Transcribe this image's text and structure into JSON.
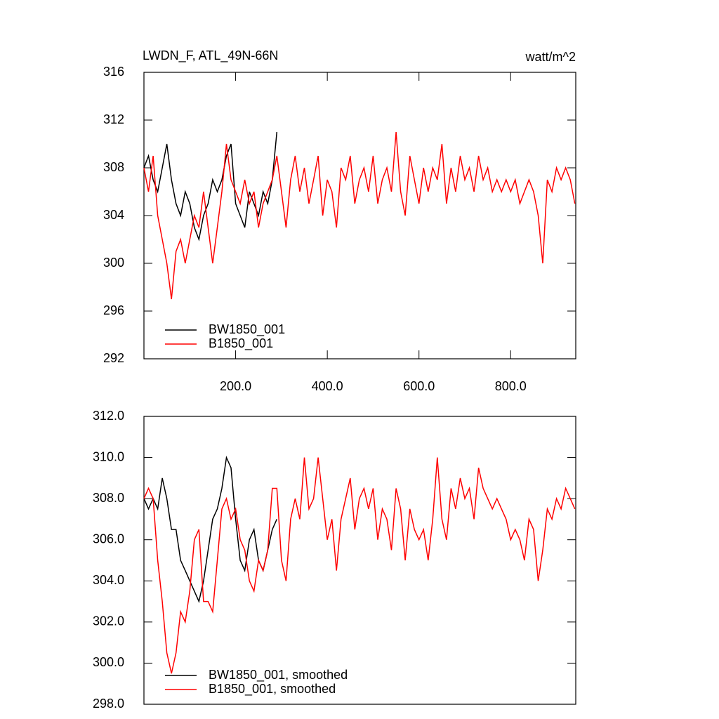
{
  "chart_data": [
    {
      "type": "line",
      "title": "LWDN_F, ATL_49N-66N",
      "units": "watt/m^2",
      "xlim": [
        0,
        942
      ],
      "xticks": [
        {
          "value": 200,
          "label": "200.0"
        },
        {
          "value": 400,
          "label": "400.0"
        },
        {
          "value": 600,
          "label": "600.0"
        },
        {
          "value": 800,
          "label": "800.0"
        }
      ],
      "ylim": [
        292,
        316
      ],
      "yticks": [
        292,
        296,
        300,
        304,
        308,
        312,
        316
      ],
      "series": [
        {
          "name": "BW1850_001",
          "color": "#000000",
          "x": [
            0,
            10,
            20,
            30,
            40,
            50,
            60,
            70,
            80,
            90,
            100,
            110,
            120,
            130,
            140,
            150,
            160,
            170,
            180,
            190,
            200,
            210,
            220,
            230,
            240,
            250,
            260,
            270,
            280,
            290
          ],
          "values": [
            308,
            309,
            307,
            306,
            308,
            310,
            307,
            305,
            304,
            306,
            305,
            303,
            302,
            304,
            305,
            307,
            306,
            307,
            309,
            310,
            305,
            304,
            303,
            306,
            305,
            304,
            306,
            305,
            307,
            311
          ]
        },
        {
          "name": "B1850_001",
          "color": "#ff0000",
          "x": [
            0,
            10,
            20,
            30,
            40,
            50,
            60,
            70,
            80,
            90,
            100,
            110,
            120,
            130,
            140,
            150,
            160,
            170,
            180,
            190,
            200,
            210,
            220,
            230,
            240,
            250,
            260,
            270,
            280,
            290,
            300,
            310,
            320,
            330,
            340,
            350,
            360,
            370,
            380,
            390,
            400,
            410,
            420,
            430,
            440,
            450,
            460,
            470,
            480,
            490,
            500,
            510,
            520,
            530,
            540,
            550,
            560,
            570,
            580,
            590,
            600,
            610,
            620,
            630,
            640,
            650,
            660,
            670,
            680,
            690,
            700,
            710,
            720,
            730,
            740,
            750,
            760,
            770,
            780,
            790,
            800,
            810,
            820,
            830,
            840,
            850,
            860,
            870,
            880,
            890,
            900,
            910,
            920,
            930,
            940
          ],
          "values": [
            308,
            306,
            309,
            304,
            302,
            300,
            297,
            301,
            302,
            300,
            302,
            304,
            303,
            306,
            303,
            300,
            303,
            306,
            310,
            307,
            306,
            305,
            307,
            305,
            306,
            303,
            305,
            306,
            307,
            309,
            306,
            303,
            307,
            309,
            306,
            308,
            305,
            307,
            309,
            304,
            307,
            306,
            303,
            308,
            307,
            309,
            305,
            307,
            308,
            306,
            309,
            305,
            307,
            308,
            306,
            311,
            306,
            304,
            309,
            307,
            305,
            308,
            306,
            308,
            307,
            310,
            305,
            308,
            306,
            309,
            307,
            308,
            306,
            309,
            307,
            308,
            306,
            307,
            306,
            307,
            306,
            307,
            305,
            306,
            307,
            306,
            304,
            300,
            307,
            306,
            308,
            307,
            308,
            307,
            305
          ]
        }
      ]
    },
    {
      "type": "line",
      "xlim": [
        0,
        942
      ],
      "ylim": [
        298,
        312
      ],
      "yticks": [
        {
          "value": 298,
          "label": "298.0"
        },
        {
          "value": 300,
          "label": "300.0"
        },
        {
          "value": 302,
          "label": "302.0"
        },
        {
          "value": 304,
          "label": "304.0"
        },
        {
          "value": 306,
          "label": "306.0"
        },
        {
          "value": 308,
          "label": "308.0"
        },
        {
          "value": 310,
          "label": "310.0"
        },
        {
          "value": 312,
          "label": "312.0"
        }
      ],
      "series": [
        {
          "name": "BW1850_001, smoothed",
          "color": "#000000",
          "x": [
            0,
            10,
            20,
            30,
            40,
            50,
            60,
            70,
            80,
            90,
            100,
            110,
            120,
            130,
            140,
            150,
            160,
            170,
            180,
            190,
            200,
            210,
            220,
            230,
            240,
            250,
            260,
            270,
            280,
            290
          ],
          "values": [
            308,
            307.5,
            308,
            307.5,
            309,
            308,
            306.5,
            306.5,
            305,
            304.5,
            304,
            303.5,
            303,
            304,
            305.5,
            307,
            307.5,
            308.5,
            310,
            309.5,
            307,
            305,
            304.5,
            306,
            306.5,
            305,
            304.5,
            305.5,
            306.5,
            307
          ]
        },
        {
          "name": "B1850_001, smoothed",
          "color": "#ff0000",
          "x": [
            0,
            10,
            20,
            30,
            40,
            50,
            60,
            70,
            80,
            90,
            100,
            110,
            120,
            130,
            140,
            150,
            160,
            170,
            180,
            190,
            200,
            210,
            220,
            230,
            240,
            250,
            260,
            270,
            280,
            290,
            300,
            310,
            320,
            330,
            340,
            350,
            360,
            370,
            380,
            390,
            400,
            410,
            420,
            430,
            440,
            450,
            460,
            470,
            480,
            490,
            500,
            510,
            520,
            530,
            540,
            550,
            560,
            570,
            580,
            590,
            600,
            610,
            620,
            630,
            640,
            650,
            660,
            670,
            680,
            690,
            700,
            710,
            720,
            730,
            740,
            750,
            760,
            770,
            780,
            790,
            800,
            810,
            820,
            830,
            840,
            850,
            860,
            870,
            880,
            890,
            900,
            910,
            920,
            930,
            940
          ],
          "values": [
            308,
            308.5,
            308,
            305,
            303,
            300.5,
            299.5,
            300.5,
            302.5,
            302,
            303.5,
            306,
            306.5,
            303,
            303,
            302.5,
            305,
            307.5,
            308,
            307,
            307.5,
            306,
            305.5,
            304,
            303.5,
            305,
            304.5,
            305.5,
            308.5,
            308.5,
            305,
            304,
            307,
            308,
            307,
            310,
            307.5,
            308,
            310,
            308,
            306,
            307,
            304.5,
            307,
            308,
            309,
            306.5,
            308,
            308.5,
            307.5,
            308.5,
            306,
            307.5,
            307,
            305.5,
            308.5,
            307.5,
            305,
            307.5,
            306.5,
            306,
            306.5,
            305,
            307,
            310,
            307,
            306,
            308.5,
            307.5,
            309,
            308,
            308.5,
            307,
            309.5,
            308.5,
            308,
            307.5,
            308,
            307.5,
            307,
            306,
            306.5,
            306,
            305,
            307,
            306.5,
            304,
            305.5,
            307.5,
            307,
            308,
            307.5,
            308.5,
            308,
            307.5
          ]
        }
      ]
    }
  ]
}
